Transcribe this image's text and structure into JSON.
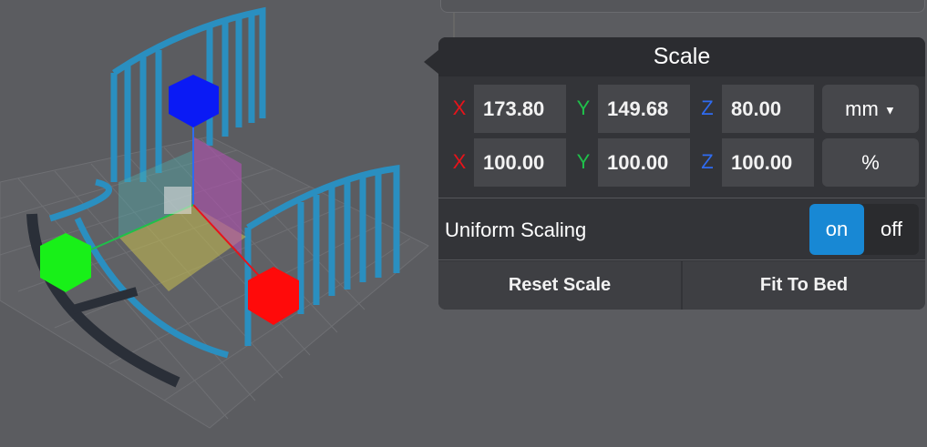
{
  "panel": {
    "title": "Scale",
    "size_row": {
      "x_label": "X",
      "x": "173.80",
      "y_label": "Y",
      "y": "149.68",
      "z_label": "Z",
      "z": "80.00",
      "unit": "mm"
    },
    "percent_row": {
      "x_label": "X",
      "x": "100.00",
      "y_label": "Y",
      "y": "100.00",
      "z_label": "Z",
      "z": "100.00",
      "unit": "%"
    },
    "uniform_scaling": {
      "label": "Uniform Scaling",
      "on": "on",
      "off": "off",
      "state": "on"
    },
    "reset_label": "Reset Scale",
    "fit_label": "Fit To Bed"
  },
  "colors": {
    "x_axis": "#e8131a",
    "y_axis": "#1fc04a",
    "z_axis": "#2f6bf0",
    "accent": "#1888d4",
    "model": "#2a8fc0"
  }
}
